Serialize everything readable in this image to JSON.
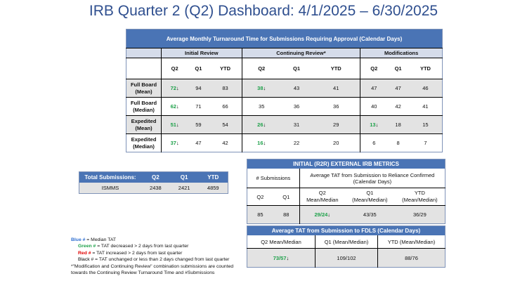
{
  "title": "IRB Quarter 2 (Q2) Dashboard: 4/1/2025 – 6/30/2025",
  "tat_table": {
    "title": "Average Monthly Turnaround Time for Submissions Requiring Approval (Calendar Days)",
    "groups": [
      "Initial Review",
      "Continuing Review*",
      "Modifications"
    ],
    "subcols": [
      "Q2",
      "Q1",
      "YTD"
    ],
    "rows": [
      {
        "label1": "Full Board",
        "label2": "(Mean)",
        "values": [
          {
            "v": "72",
            "arrow": "↓",
            "color": "green"
          },
          {
            "v": "94"
          },
          {
            "v": "83"
          },
          {
            "v": "38",
            "arrow": "↓",
            "color": "green"
          },
          {
            "v": "43"
          },
          {
            "v": "41"
          },
          {
            "v": "47"
          },
          {
            "v": "47"
          },
          {
            "v": "46"
          }
        ]
      },
      {
        "label1": "Full Board",
        "label2": "(Median)",
        "values": [
          {
            "v": "62",
            "arrow": "↓",
            "color": "green"
          },
          {
            "v": "71"
          },
          {
            "v": "66"
          },
          {
            "v": "35"
          },
          {
            "v": "36"
          },
          {
            "v": "36"
          },
          {
            "v": "40"
          },
          {
            "v": "42"
          },
          {
            "v": "41"
          }
        ]
      },
      {
        "label1": "Expedited",
        "label2": "(Mean)",
        "values": [
          {
            "v": "51",
            "arrow": "↓",
            "color": "green"
          },
          {
            "v": "59"
          },
          {
            "v": "54"
          },
          {
            "v": "26",
            "arrow": "↓",
            "color": "green"
          },
          {
            "v": "31"
          },
          {
            "v": "29"
          },
          {
            "v": "13",
            "arrow": "↓",
            "color": "green"
          },
          {
            "v": "18"
          },
          {
            "v": "15"
          }
        ]
      },
      {
        "label1": "Expedited",
        "label2": "(Median)",
        "values": [
          {
            "v": "37",
            "arrow": "↓",
            "color": "green"
          },
          {
            "v": "47"
          },
          {
            "v": "42"
          },
          {
            "v": "16",
            "arrow": "↓",
            "color": "green"
          },
          {
            "v": "22"
          },
          {
            "v": "20"
          },
          {
            "v": "6"
          },
          {
            "v": "8"
          },
          {
            "v": "7"
          }
        ]
      }
    ]
  },
  "totals": {
    "header": [
      "Total Submissions:",
      "Q2",
      "Q1",
      "YTD"
    ],
    "row": [
      "ISMMS",
      "2438",
      "2421",
      "4859"
    ]
  },
  "r2r": {
    "title": "INITIAL (R2R) EXTERNAL IRB METRICS",
    "submissions_label": "# Submissions",
    "tat_label": "Average TAT from Submission to Reliance Confirmed (Calendar Days)",
    "sub_cols": [
      "Q2",
      "Q1"
    ],
    "tat_cols": [
      "Q2\nMean/Median",
      "Q1\n(Mean/Median)",
      "YTD\n(Mean/Median)"
    ],
    "sub_values": [
      "85",
      "88"
    ],
    "tat_values": [
      {
        "v": "29/24",
        "arrow": "↓",
        "color": "green"
      },
      {
        "v": "43/35"
      },
      {
        "v": "36/29"
      }
    ]
  },
  "fdls": {
    "title": "Average TAT from Submission to FDLS (Calendar Days)",
    "cols": [
      "Q2 Mean/Median",
      "Q1 (Mean/Median)",
      "YTD (Mean/Median)"
    ],
    "values": [
      {
        "v": "73/57",
        "arrow": "↓",
        "color": "green"
      },
      {
        "v": "109/102"
      },
      {
        "v": "88/76"
      }
    ]
  },
  "legend": {
    "blue": {
      "key": "Blue #",
      "text": " = Median TAT"
    },
    "green": {
      "key": "Green #",
      "text": " = TAT decreased  > 2 days from last quarter"
    },
    "red": {
      "key": "Red #",
      "text": " = TAT increased  > 2 days from last quarter"
    },
    "black": {
      "key": "Black #",
      "text": " = TAT unchanged or less than 2 days changed from last quarter"
    },
    "note1": "*\"Modification and Continuing Review\" combination submissions are counted",
    "note2": "towards the Continuing Review Turnaround Time and #Submissions"
  },
  "colors": {
    "header": "#4a74b5",
    "subheader": "#d5dcea",
    "green": "#1ea14a",
    "blue": "#2f6fd1",
    "red": "#e00000",
    "title": "#2f4f8f"
  }
}
